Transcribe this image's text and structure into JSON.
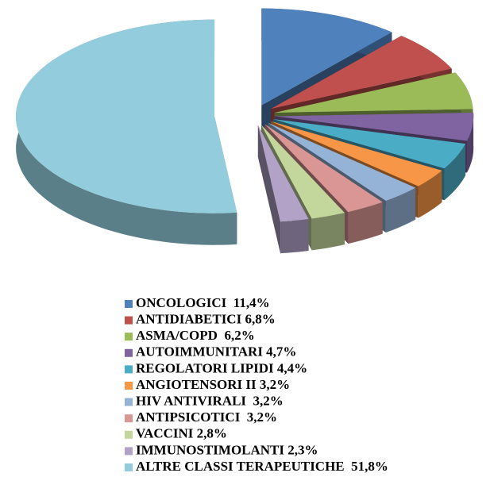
{
  "chart_data": {
    "type": "pie3d",
    "categories": [
      "ONCOLOGICI  11,4%",
      "ANTIDIABETICI 6,8%",
      "ASMA/COPD  6,2%",
      "AUTOIMMUNITARI 4,7%",
      "REGOLATORI LIPIDI 4,4%",
      "ANGIOTENSORI II 3,2%",
      "HIV ANTIVIRALI  3,2%",
      "ANTIPSICOTICI  3,2%",
      "VACCINI 2,8%",
      "IMMUNOSTIMOLANTI 2,3%",
      "ALTRE CLASSI TERAPEUTICHE  51,8%"
    ],
    "values": [
      11.4,
      6.8,
      6.2,
      4.7,
      4.4,
      3.2,
      3.2,
      3.2,
      2.8,
      2.3,
      51.8
    ],
    "colors": [
      "#4f81bd",
      "#c0504d",
      "#9bbb59",
      "#8064a2",
      "#4bacc6",
      "#f79646",
      "#95b3d7",
      "#d99694",
      "#c3d69b",
      "#b2a2c7",
      "#93cddd"
    ],
    "legend": "bottom"
  }
}
